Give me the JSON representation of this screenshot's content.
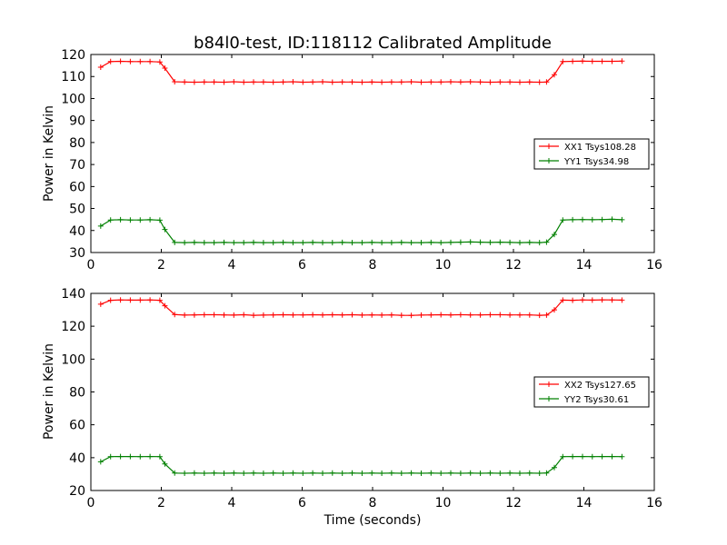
{
  "chart_data": [
    {
      "type": "line",
      "title": "b84l0-test, ID:118112 Calibrated Amplitude",
      "ylabel": "Power in Kelvin",
      "xlabel": "",
      "xlim": [
        0,
        16
      ],
      "ylim": [
        30,
        120
      ],
      "xticks": [
        0,
        2,
        4,
        6,
        8,
        10,
        12,
        14,
        16
      ],
      "yticks": [
        30,
        40,
        50,
        60,
        70,
        80,
        90,
        100,
        110,
        120
      ],
      "legend_position": "right",
      "x": [
        0.28,
        0.56,
        0.84,
        1.12,
        1.4,
        1.68,
        1.96,
        2.1,
        2.38,
        2.66,
        2.94,
        3.22,
        3.5,
        3.78,
        4.06,
        4.34,
        4.62,
        4.9,
        5.18,
        5.46,
        5.74,
        6.02,
        6.3,
        6.58,
        6.86,
        7.14,
        7.42,
        7.7,
        7.98,
        8.26,
        8.54,
        8.82,
        9.1,
        9.38,
        9.66,
        9.94,
        10.22,
        10.5,
        10.78,
        11.06,
        11.34,
        11.62,
        11.9,
        12.18,
        12.46,
        12.74,
        12.94,
        13.16,
        13.4,
        13.68,
        13.96,
        14.24,
        14.52,
        14.8,
        15.08
      ],
      "series": [
        {
          "name": "XX1 Tsys108.28",
          "color": "#ff0000",
          "values": [
            114.2,
            116.8,
            116.9,
            116.8,
            116.8,
            116.8,
            116.6,
            113.8,
            107.6,
            107.5,
            107.4,
            107.5,
            107.5,
            107.4,
            107.6,
            107.4,
            107.5,
            107.5,
            107.4,
            107.5,
            107.6,
            107.4,
            107.5,
            107.6,
            107.4,
            107.5,
            107.5,
            107.4,
            107.5,
            107.4,
            107.5,
            107.5,
            107.6,
            107.4,
            107.5,
            107.5,
            107.6,
            107.5,
            107.6,
            107.5,
            107.4,
            107.5,
            107.5,
            107.4,
            107.5,
            107.4,
            107.5,
            110.8,
            116.8,
            116.9,
            117.0,
            116.9,
            116.9,
            116.9,
            117.0
          ]
        },
        {
          "name": "YY1 Tsys34.98",
          "color": "#008000",
          "values": [
            42.0,
            44.8,
            44.9,
            44.8,
            44.8,
            44.9,
            44.7,
            40.5,
            34.6,
            34.5,
            34.6,
            34.5,
            34.5,
            34.6,
            34.5,
            34.5,
            34.6,
            34.5,
            34.5,
            34.6,
            34.5,
            34.5,
            34.6,
            34.5,
            34.5,
            34.6,
            34.5,
            34.5,
            34.6,
            34.5,
            34.5,
            34.6,
            34.5,
            34.5,
            34.6,
            34.5,
            34.6,
            34.7,
            34.8,
            34.7,
            34.6,
            34.7,
            34.6,
            34.5,
            34.6,
            34.5,
            34.7,
            38.2,
            44.8,
            44.9,
            45.0,
            44.9,
            45.0,
            45.1,
            44.9
          ]
        }
      ]
    },
    {
      "type": "line",
      "title": "",
      "ylabel": "Power in Kelvin",
      "xlabel": "Time (seconds)",
      "xlim": [
        0,
        16
      ],
      "ylim": [
        20,
        140
      ],
      "xticks": [
        0,
        2,
        4,
        6,
        8,
        10,
        12,
        14,
        16
      ],
      "yticks": [
        20,
        40,
        60,
        80,
        100,
        120,
        140
      ],
      "legend_position": "right",
      "x": [
        0.28,
        0.56,
        0.84,
        1.12,
        1.4,
        1.68,
        1.96,
        2.1,
        2.38,
        2.66,
        2.94,
        3.22,
        3.5,
        3.78,
        4.06,
        4.34,
        4.62,
        4.9,
        5.18,
        5.46,
        5.74,
        6.02,
        6.3,
        6.58,
        6.86,
        7.14,
        7.42,
        7.7,
        7.98,
        8.26,
        8.54,
        8.82,
        9.1,
        9.38,
        9.66,
        9.94,
        10.22,
        10.5,
        10.78,
        11.06,
        11.34,
        11.62,
        11.9,
        12.18,
        12.46,
        12.74,
        12.94,
        13.16,
        13.4,
        13.68,
        13.96,
        14.24,
        14.52,
        14.8,
        15.08
      ],
      "series": [
        {
          "name": "XX2 Tsys127.65",
          "color": "#ff0000",
          "values": [
            133.4,
            135.8,
            136.0,
            135.9,
            135.9,
            136.0,
            135.8,
            132.5,
            127.1,
            126.8,
            126.9,
            127.0,
            127.0,
            126.9,
            126.8,
            127.0,
            126.7,
            126.8,
            126.9,
            127.0,
            126.9,
            126.9,
            127.0,
            126.9,
            127.0,
            126.9,
            127.0,
            126.8,
            126.9,
            126.8,
            126.9,
            126.7,
            126.6,
            126.8,
            126.9,
            127.0,
            126.9,
            127.0,
            126.9,
            126.9,
            127.0,
            127.0,
            126.9,
            126.9,
            126.9,
            126.7,
            126.8,
            130.0,
            135.9,
            135.8,
            136.0,
            135.9,
            136.1,
            136.0,
            135.9
          ]
        },
        {
          "name": "YY2 Tsys30.61",
          "color": "#008000",
          "values": [
            37.5,
            40.6,
            40.7,
            40.7,
            40.6,
            40.7,
            40.6,
            36.2,
            30.6,
            30.5,
            30.6,
            30.5,
            30.6,
            30.5,
            30.6,
            30.5,
            30.6,
            30.5,
            30.6,
            30.5,
            30.6,
            30.5,
            30.6,
            30.5,
            30.6,
            30.5,
            30.6,
            30.5,
            30.6,
            30.5,
            30.6,
            30.5,
            30.6,
            30.5,
            30.6,
            30.5,
            30.6,
            30.5,
            30.6,
            30.5,
            30.6,
            30.5,
            30.6,
            30.5,
            30.6,
            30.5,
            30.7,
            34.0,
            40.6,
            40.7,
            40.7,
            40.6,
            40.7,
            40.7,
            40.6
          ]
        }
      ]
    }
  ]
}
